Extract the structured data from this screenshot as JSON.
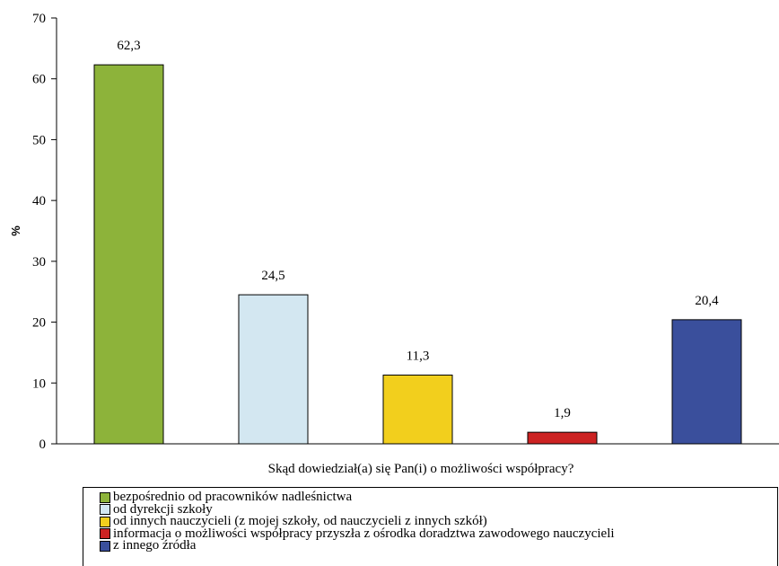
{
  "chart_data": {
    "type": "bar",
    "categories": [
      "bezpośrednio od pracowników nadleśnictwa",
      "od dyrekcji szkoły",
      "od innych nauczycieli (z mojej szkoły, od nauczycieli z innych szkół)",
      "informacja o możliwości współpracy przyszła z ośrodka doradztwa zawodowego nauczycieli",
      "z innego źródła"
    ],
    "values": [
      62.3,
      24.5,
      11.3,
      1.9,
      20.4
    ],
    "value_labels": [
      "62,3",
      "24,5",
      "11,3",
      "1,9",
      "20,4"
    ],
    "colors": [
      "#8db33a",
      "#d3e7f1",
      "#f2cf1d",
      "#cc2222",
      "#3a4f9c"
    ],
    "title": "",
    "xlabel": "Skąd dowiedział(a) się Pan(i) o możliwości współpracy?",
    "ylabel": "%",
    "ylim": [
      0,
      70
    ],
    "yticks": [
      0,
      10,
      20,
      30,
      40,
      50,
      60,
      70
    ],
    "grid": false,
    "legend_position": "bottom"
  }
}
